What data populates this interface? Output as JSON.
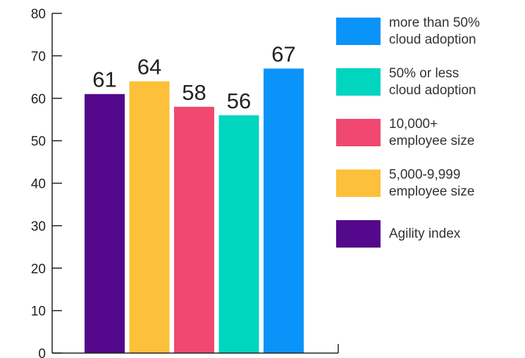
{
  "chart_data": {
    "type": "bar",
    "title": "",
    "xlabel": "",
    "ylabel": "",
    "ylim": [
      0,
      80
    ],
    "yticks": [
      "0",
      "10",
      "20",
      "30",
      "40",
      "50",
      "60",
      "70",
      "80"
    ],
    "grid": false,
    "legend_position": "right",
    "bars": [
      {
        "name": "Agility index",
        "value": 61,
        "label": "61",
        "color": "#54088C"
      },
      {
        "name": "5,000-9,999 employee size",
        "value": 64,
        "label": "64",
        "color": "#FDC03A"
      },
      {
        "name": "10,000+ employee size",
        "value": 58,
        "label": "58",
        "color": "#F04870"
      },
      {
        "name": "50% or less cloud adoption",
        "value": 56,
        "label": "56",
        "color": "#00D5C0"
      },
      {
        "name": "more than 50% cloud adoption",
        "value": 67,
        "label": "67",
        "color": "#0A93F8"
      }
    ],
    "legend": [
      {
        "text": "more than 50%\ncloud adoption",
        "color": "#0A93F8"
      },
      {
        "text": "50% or less\ncloud adoption",
        "color": "#00D5C0"
      },
      {
        "text": "10,000+\nemployee size",
        "color": "#F04870"
      },
      {
        "text": "5,000-9,999\nemployee size",
        "color": "#FDC03A"
      },
      {
        "text": "Agility index",
        "color": "#54088C"
      }
    ]
  }
}
